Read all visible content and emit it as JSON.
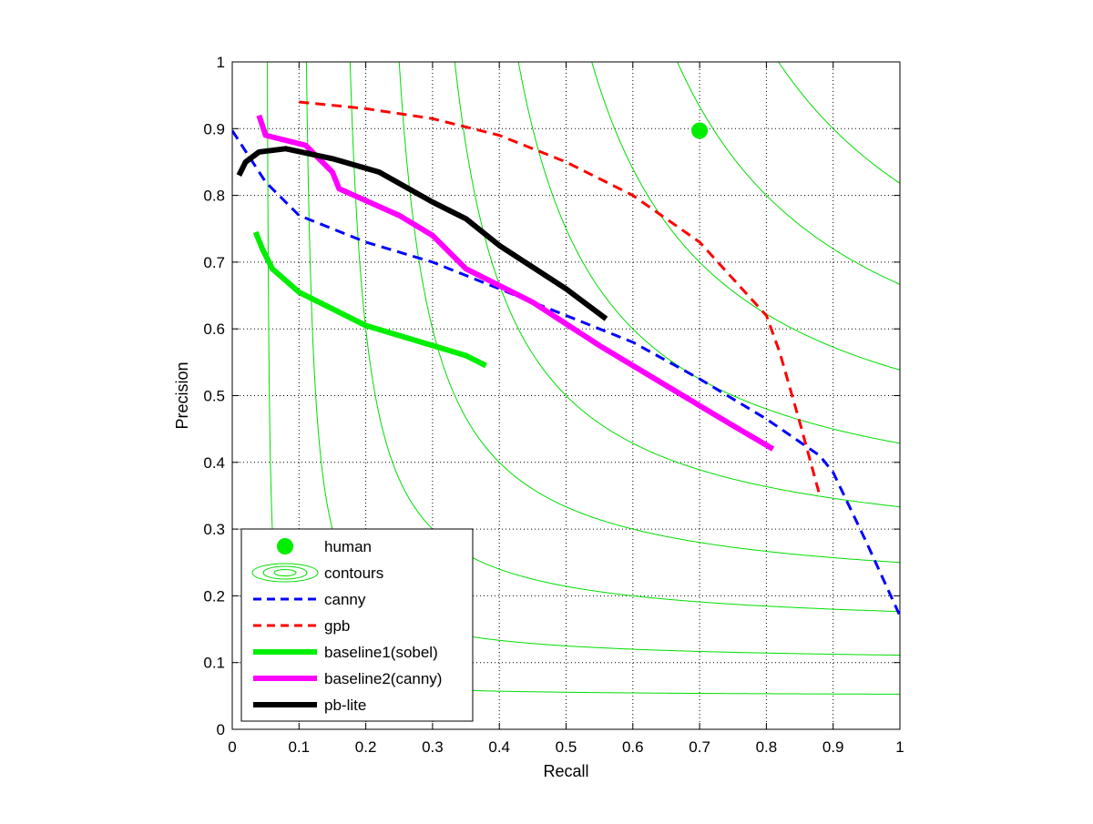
{
  "chart_data": {
    "type": "line",
    "title": "",
    "xlabel": "Recall",
    "ylabel": "Precision",
    "xlim": [
      0,
      1
    ],
    "ylim": [
      0,
      1
    ],
    "x_ticks": [
      "0",
      "0.1",
      "0.2",
      "0.3",
      "0.4",
      "0.5",
      "0.6",
      "0.7",
      "0.8",
      "0.9",
      "1"
    ],
    "y_ticks": [
      "0",
      "0.1",
      "0.2",
      "0.3",
      "0.4",
      "0.5",
      "0.6",
      "0.7",
      "0.8",
      "0.9",
      "1"
    ],
    "grid": "dotted",
    "legend_position": "bottom-left",
    "contours": {
      "name": "contours",
      "color": "#00dd00",
      "kind": "iso-F-measure",
      "levels": [
        0.1,
        0.2,
        0.3,
        0.4,
        0.5,
        0.6,
        0.7,
        0.8,
        0.9
      ]
    },
    "points": [
      {
        "name": "human",
        "color": "#00ee00",
        "x": 0.7,
        "y": 0.897
      }
    ],
    "series": [
      {
        "name": "canny",
        "color": "#0000ff",
        "style": "dashed",
        "weight": "thin",
        "x": [
          0.0,
          0.05,
          0.1,
          0.2,
          0.3,
          0.4,
          0.5,
          0.6,
          0.7,
          0.8,
          0.88,
          0.9,
          0.95,
          1.0
        ],
        "y": [
          0.897,
          0.82,
          0.77,
          0.73,
          0.7,
          0.66,
          0.62,
          0.58,
          0.525,
          0.465,
          0.41,
          0.385,
          0.28,
          0.17
        ]
      },
      {
        "name": "gpb",
        "color": "#ff0000",
        "style": "dashed",
        "weight": "thin",
        "x": [
          0.1,
          0.2,
          0.3,
          0.4,
          0.5,
          0.6,
          0.7,
          0.8,
          0.82,
          0.85,
          0.88
        ],
        "y": [
          0.94,
          0.93,
          0.915,
          0.89,
          0.85,
          0.8,
          0.73,
          0.62,
          0.565,
          0.46,
          0.35
        ]
      },
      {
        "name": "baseline1(sobel)",
        "color": "#00ee00",
        "style": "solid",
        "weight": "thick",
        "x": [
          0.035,
          0.045,
          0.06,
          0.1,
          0.15,
          0.2,
          0.25,
          0.3,
          0.35,
          0.38
        ],
        "y": [
          0.745,
          0.72,
          0.69,
          0.655,
          0.63,
          0.605,
          0.59,
          0.575,
          0.56,
          0.545
        ]
      },
      {
        "name": "baseline2(canny)",
        "color": "#ff00ff",
        "style": "solid",
        "weight": "thick",
        "x": [
          0.04,
          0.05,
          0.11,
          0.15,
          0.16,
          0.25,
          0.3,
          0.35,
          0.45,
          0.55,
          0.65,
          0.75,
          0.81
        ],
        "y": [
          0.92,
          0.89,
          0.875,
          0.835,
          0.81,
          0.77,
          0.74,
          0.69,
          0.64,
          0.575,
          0.515,
          0.455,
          0.42
        ]
      },
      {
        "name": "pb-lite",
        "color": "#000000",
        "style": "solid",
        "weight": "thick",
        "x": [
          0.01,
          0.02,
          0.04,
          0.08,
          0.15,
          0.22,
          0.3,
          0.35,
          0.4,
          0.5,
          0.56
        ],
        "y": [
          0.83,
          0.85,
          0.865,
          0.87,
          0.855,
          0.835,
          0.79,
          0.765,
          0.725,
          0.66,
          0.615
        ]
      }
    ]
  },
  "legend": {
    "items": [
      {
        "key": "human",
        "label": "human"
      },
      {
        "key": "contours",
        "label": "contours"
      },
      {
        "key": "canny",
        "label": "canny"
      },
      {
        "key": "gpb",
        "label": "gpb"
      },
      {
        "key": "baseline1",
        "label": "baseline1(sobel)"
      },
      {
        "key": "baseline2",
        "label": "baseline2(canny)"
      },
      {
        "key": "pblite",
        "label": "pb-lite"
      }
    ]
  }
}
